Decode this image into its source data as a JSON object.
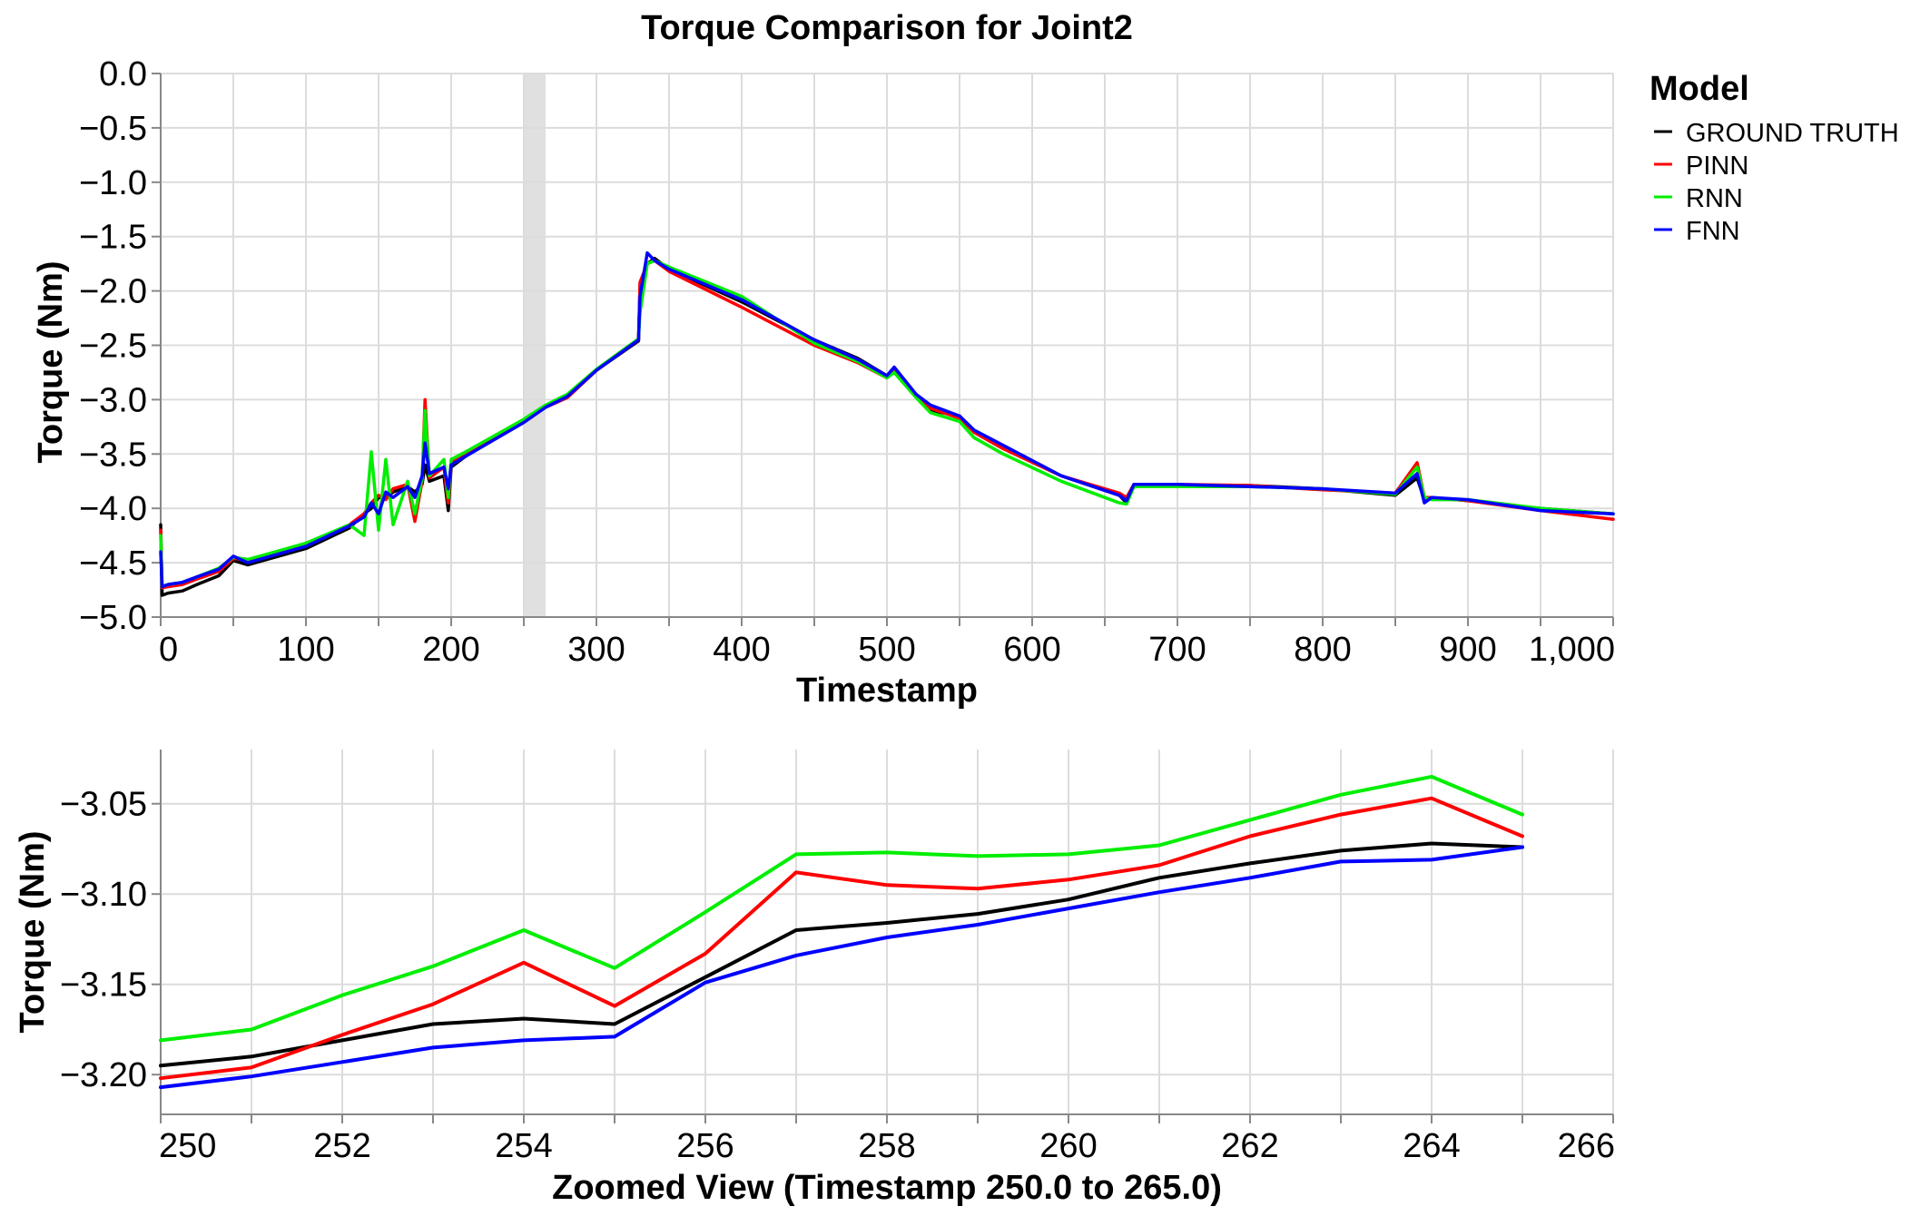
{
  "colors": {
    "GROUND TRUTH": "#000000",
    "PINN": "#ff0000",
    "RNN": "#00ee00",
    "FNN": "#0000ff",
    "highlight": "#e0e0e0"
  },
  "chart_data": [
    {
      "type": "line",
      "title": "Torque Comparison for Joint2",
      "xlabel": "Timestamp",
      "ylabel": "Torque (Nm)",
      "xlim": [
        0,
        1000
      ],
      "ylim": [
        -5.0,
        0.0
      ],
      "grid": true,
      "x_ticks": [
        0,
        100,
        200,
        300,
        400,
        500,
        600,
        700,
        800,
        900,
        1000
      ],
      "x_tick_labels": [
        "0",
        "100",
        "200",
        "300",
        "400",
        "500",
        "600",
        "700",
        "800",
        "900",
        "1,000"
      ],
      "y_ticks": [
        0,
        -0.5,
        -1.0,
        -1.5,
        -2.0,
        -2.5,
        -3.0,
        -3.5,
        -4.0,
        -4.5,
        -5.0
      ],
      "y_tick_labels": [
        "0.0",
        "−0.5",
        "−1.0",
        "−1.5",
        "−2.0",
        "−2.5",
        "−3.0",
        "−3.5",
        "−4.0",
        "−4.5",
        "−5.0"
      ],
      "highlight_range": [
        250,
        265
      ],
      "legend": {
        "title": "Model",
        "position": "right",
        "entries": [
          "GROUND TRUTH",
          "PINN",
          "RNN",
          "FNN"
        ]
      },
      "series": [
        {
          "name": "GROUND TRUTH",
          "x": [
            0,
            1,
            5,
            15,
            25,
            40,
            50,
            60,
            100,
            130,
            140,
            145,
            150,
            155,
            160,
            170,
            175,
            180,
            182,
            185,
            195,
            198,
            200,
            210,
            250,
            265,
            280,
            300,
            329,
            330,
            335,
            340,
            350,
            400,
            450,
            480,
            500,
            505,
            520,
            530,
            550,
            560,
            580,
            620,
            660,
            665,
            670,
            700,
            750,
            800,
            850,
            865,
            870,
            875,
            900,
            950,
            1000
          ],
          "y": [
            -4.15,
            -4.8,
            -4.78,
            -4.76,
            -4.7,
            -4.62,
            -4.48,
            -4.52,
            -4.37,
            -4.18,
            -4.05,
            -4.0,
            -3.9,
            -3.9,
            -3.85,
            -3.8,
            -3.85,
            -3.78,
            -3.6,
            -3.75,
            -3.7,
            -4.02,
            -3.62,
            -3.52,
            -3.2,
            -3.07,
            -2.98,
            -2.73,
            -2.46,
            -1.95,
            -1.75,
            -1.7,
            -1.8,
            -2.1,
            -2.45,
            -2.62,
            -2.78,
            -2.72,
            -2.95,
            -3.1,
            -3.15,
            -3.3,
            -3.45,
            -3.7,
            -3.88,
            -3.95,
            -3.78,
            -3.79,
            -3.79,
            -3.82,
            -3.88,
            -3.72,
            -3.92,
            -3.9,
            -3.93,
            -4.0,
            -4.05
          ]
        },
        {
          "name": "PINN",
          "x": [
            0,
            1,
            5,
            15,
            25,
            40,
            50,
            60,
            100,
            130,
            140,
            145,
            150,
            155,
            160,
            170,
            175,
            180,
            182,
            185,
            195,
            198,
            200,
            210,
            250,
            265,
            280,
            300,
            329,
            330,
            335,
            340,
            350,
            400,
            450,
            480,
            500,
            505,
            520,
            530,
            550,
            560,
            580,
            620,
            660,
            665,
            670,
            700,
            750,
            800,
            850,
            865,
            870,
            875,
            900,
            950,
            1000
          ],
          "y": [
            -4.2,
            -4.73,
            -4.72,
            -4.7,
            -4.65,
            -4.58,
            -4.46,
            -4.48,
            -4.33,
            -4.15,
            -4.05,
            -3.95,
            -3.88,
            -3.92,
            -3.82,
            -3.78,
            -4.12,
            -3.75,
            -3.0,
            -3.72,
            -3.62,
            -3.95,
            -3.58,
            -3.5,
            -3.2,
            -3.07,
            -2.98,
            -2.73,
            -2.45,
            -1.92,
            -1.75,
            -1.72,
            -1.82,
            -2.15,
            -2.5,
            -2.66,
            -2.8,
            -2.74,
            -2.95,
            -3.08,
            -3.17,
            -3.3,
            -3.45,
            -3.7,
            -3.86,
            -3.9,
            -3.78,
            -3.78,
            -3.79,
            -3.83,
            -3.86,
            -3.58,
            -3.9,
            -3.9,
            -3.93,
            -4.02,
            -4.1
          ]
        },
        {
          "name": "RNN",
          "x": [
            0,
            1,
            5,
            15,
            25,
            40,
            50,
            60,
            100,
            130,
            140,
            145,
            150,
            155,
            160,
            170,
            175,
            180,
            182,
            185,
            195,
            198,
            200,
            210,
            250,
            265,
            280,
            300,
            329,
            330,
            335,
            340,
            350,
            400,
            450,
            480,
            500,
            505,
            520,
            530,
            550,
            560,
            580,
            620,
            660,
            665,
            670,
            700,
            750,
            800,
            850,
            865,
            870,
            875,
            900,
            950,
            1000
          ],
          "y": [
            -4.25,
            -4.72,
            -4.7,
            -4.68,
            -4.63,
            -4.55,
            -4.45,
            -4.47,
            -4.32,
            -4.15,
            -4.25,
            -3.48,
            -4.2,
            -3.55,
            -4.15,
            -3.75,
            -4.05,
            -3.72,
            -3.1,
            -3.7,
            -3.55,
            -3.9,
            -3.55,
            -3.48,
            -3.18,
            -3.05,
            -2.95,
            -2.72,
            -2.44,
            -2.2,
            -1.75,
            -1.72,
            -1.78,
            -2.05,
            -2.48,
            -2.65,
            -2.8,
            -2.75,
            -2.98,
            -3.12,
            -3.2,
            -3.35,
            -3.5,
            -3.75,
            -3.95,
            -3.96,
            -3.8,
            -3.8,
            -3.8,
            -3.82,
            -3.87,
            -3.62,
            -3.9,
            -3.92,
            -3.92,
            -4.0,
            -4.05
          ]
        },
        {
          "name": "FNN",
          "x": [
            0,
            1,
            5,
            15,
            25,
            40,
            50,
            60,
            100,
            130,
            140,
            145,
            150,
            155,
            160,
            170,
            175,
            180,
            182,
            185,
            195,
            198,
            200,
            210,
            250,
            265,
            280,
            300,
            329,
            330,
            335,
            340,
            350,
            400,
            450,
            480,
            500,
            505,
            520,
            530,
            550,
            560,
            580,
            620,
            660,
            665,
            670,
            700,
            750,
            800,
            850,
            865,
            870,
            875,
            900,
            950,
            1000
          ],
          "y": [
            -4.4,
            -4.72,
            -4.7,
            -4.68,
            -4.63,
            -4.56,
            -4.44,
            -4.5,
            -4.35,
            -4.16,
            -4.08,
            -3.95,
            -4.05,
            -3.85,
            -3.9,
            -3.8,
            -3.9,
            -3.7,
            -3.4,
            -3.68,
            -3.62,
            -3.82,
            -3.6,
            -3.52,
            -3.21,
            -3.07,
            -2.97,
            -2.73,
            -2.45,
            -2.05,
            -1.65,
            -1.72,
            -1.8,
            -2.08,
            -2.45,
            -2.63,
            -2.78,
            -2.7,
            -2.95,
            -3.05,
            -3.15,
            -3.28,
            -3.42,
            -3.7,
            -3.88,
            -3.93,
            -3.78,
            -3.78,
            -3.8,
            -3.82,
            -3.86,
            -3.68,
            -3.95,
            -3.9,
            -3.92,
            -4.02,
            -4.05
          ]
        }
      ]
    },
    {
      "type": "line",
      "title": "",
      "xlabel": "Zoomed View (Timestamp 250.0 to 265.0)",
      "ylabel": "Torque (Nm)",
      "xlim": [
        250,
        266
      ],
      "ylim": [
        -3.222,
        -3.02
      ],
      "grid": true,
      "x_ticks": [
        250,
        252,
        254,
        256,
        258,
        260,
        262,
        264,
        266
      ],
      "x_tick_labels": [
        "250",
        "252",
        "254",
        "256",
        "258",
        "260",
        "262",
        "264",
        "266"
      ],
      "y_ticks": [
        -3.05,
        -3.1,
        -3.15,
        -3.2
      ],
      "y_tick_labels": [
        "−3.05",
        "−3.10",
        "−3.15",
        "−3.20"
      ],
      "x": [
        250,
        251,
        252,
        253,
        254,
        255,
        256,
        257,
        258,
        259,
        260,
        261,
        262,
        263,
        264,
        265
      ],
      "series": [
        {
          "name": "GROUND TRUTH",
          "values": [
            -3.195,
            -3.19,
            -3.181,
            -3.172,
            -3.169,
            -3.172,
            -3.146,
            -3.12,
            -3.116,
            -3.111,
            -3.103,
            -3.091,
            -3.083,
            -3.076,
            -3.072,
            -3.074
          ]
        },
        {
          "name": "PINN",
          "values": [
            -3.202,
            -3.196,
            -3.178,
            -3.161,
            -3.138,
            -3.162,
            -3.133,
            -3.088,
            -3.095,
            -3.097,
            -3.092,
            -3.084,
            -3.068,
            -3.056,
            -3.047,
            -3.068
          ]
        },
        {
          "name": "RNN",
          "values": [
            -3.181,
            -3.175,
            -3.156,
            -3.14,
            -3.12,
            -3.141,
            -3.11,
            -3.078,
            -3.077,
            -3.079,
            -3.078,
            -3.073,
            -3.059,
            -3.045,
            -3.035,
            -3.056
          ]
        },
        {
          "name": "FNN",
          "values": [
            -3.207,
            -3.201,
            -3.193,
            -3.185,
            -3.181,
            -3.179,
            -3.149,
            -3.134,
            -3.124,
            -3.117,
            -3.108,
            -3.099,
            -3.091,
            -3.082,
            -3.081,
            -3.074
          ]
        }
      ]
    }
  ]
}
